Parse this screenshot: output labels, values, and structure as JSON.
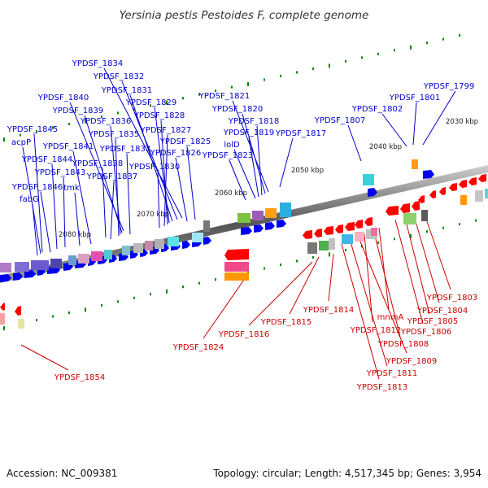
{
  "title": "Yersinia pestis Pestoides F, complete genome",
  "footer": {
    "accession": "Accession: NC_009381",
    "summary": "Topology: circular; Length: 4,517,345 bp; Genes: 3,954"
  },
  "colors": {
    "forward_label": "#0000cc",
    "reverse_label": "#cc0000",
    "forward_gene": "#0000ee",
    "reverse_gene": "#ff0000",
    "tick": "#008800"
  },
  "scale_labels": [
    {
      "text": "2030 kbp"
    },
    {
      "text": "2040 kbp"
    },
    {
      "text": "2050 kbp"
    },
    {
      "text": "2060 kbp"
    },
    {
      "text": "2070 kbp"
    },
    {
      "text": "2080 kbp"
    }
  ],
  "forward_labels": [
    {
      "text": "YPDSF_1799"
    },
    {
      "text": "YPDSF_1801"
    },
    {
      "text": "YPDSF_1802"
    },
    {
      "text": "YPDSF_1807"
    },
    {
      "text": "YPDSF_1817"
    },
    {
      "text": "YPDSF_1821"
    },
    {
      "text": "YPDSF_1820"
    },
    {
      "text": "YPDSF_1818"
    },
    {
      "text": "YPDSF_1819"
    },
    {
      "text": "lolD"
    },
    {
      "text": "YPDSF_1823"
    },
    {
      "text": "YPDSF_1834"
    },
    {
      "text": "YPDSF_1832"
    },
    {
      "text": "YPDSF_1831"
    },
    {
      "text": "YPDSF_1829"
    },
    {
      "text": "YPDSF_1828"
    },
    {
      "text": "YPDSF_1827"
    },
    {
      "text": "YPDSF_1825"
    },
    {
      "text": "YPDSF_1826"
    },
    {
      "text": "YPDSF_1830"
    },
    {
      "text": "YPDSF_1840"
    },
    {
      "text": "YPDSF_1839"
    },
    {
      "text": "YPDSF_1836"
    },
    {
      "text": "YPDSF_1835"
    },
    {
      "text": "YPDSF_1833"
    },
    {
      "text": "YPDSF_1838"
    },
    {
      "text": "YPDSF_1837"
    },
    {
      "text": "YPDSF_1845"
    },
    {
      "text": "acpP"
    },
    {
      "text": "YPDSF_1841"
    },
    {
      "text": "YPDSF_1844"
    },
    {
      "text": "YPDSF_1843"
    },
    {
      "text": "YPDSF_1846"
    },
    {
      "text": "tmk"
    },
    {
      "text": "fabG"
    }
  ],
  "reverse_labels": [
    {
      "text": "YPDSF_1803"
    },
    {
      "text": "YPDSF_1804"
    },
    {
      "text": "YPDSF_1805"
    },
    {
      "text": "YPDSF_1806"
    },
    {
      "text": "mnmA"
    },
    {
      "text": "YPDSF_1812"
    },
    {
      "text": "YPDSF_1808"
    },
    {
      "text": "YPDSF_1809"
    },
    {
      "text": "YPDSF_1811"
    },
    {
      "text": "YPDSF_1813"
    },
    {
      "text": "YPDSF_1814"
    },
    {
      "text": "YPDSF_1815"
    },
    {
      "text": "YPDSF_1816"
    },
    {
      "text": "YPDSF_1824"
    },
    {
      "text": "YPDSF_1854"
    }
  ]
}
